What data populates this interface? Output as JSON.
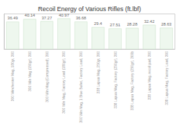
{
  "chart_data": {
    "type": "bar",
    "title": "Recoil Energy of Various Rifles (ft.lbf)",
    "categories": [
      "300 Winchester Mag, 180gr, 300",
      "300 Win Mag (150gr), 300",
      "300 Win Mag (Compressed), 300",
      "300 Win Mag, Factory Load (180gr), 300",
      "300 Win Mag, 1 Blue Bullet, Factory Load, 300",
      "338 Lapua Mag, 250gr, 300",
      "338 Lapua Mag, Factory (250gr), 300",
      "338 Lapua Mag, Factory (250gr), 300b",
      "338 Lapua Mag, recoil pad, 300",
      "338 Lapua Mag, Factory Load, 300"
    ],
    "values": [
      36.49,
      40.14,
      37.27,
      40.97,
      36.68,
      29.4,
      27.51,
      28.28,
      32.42,
      28.63
    ],
    "color": "#eef7ee",
    "ylim": [
      0,
      47
    ],
    "grid": false,
    "data_labels": true,
    "tick_labels": "x"
  }
}
